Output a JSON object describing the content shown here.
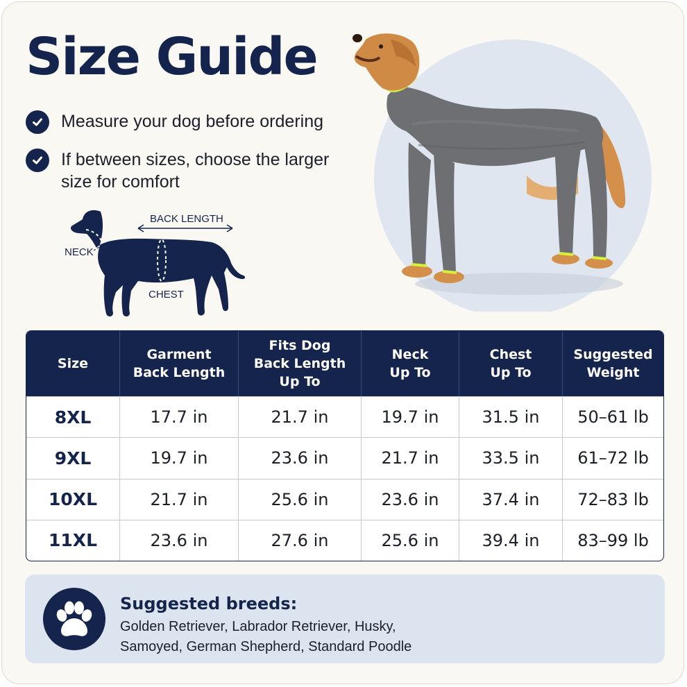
{
  "title": "Size Guide",
  "tips": [
    {
      "icon": "check-icon",
      "lines": [
        "Measure your dog before ordering"
      ]
    },
    {
      "icon": "check-icon",
      "lines": [
        "If between sizes, choose the larger",
        "size for comfort"
      ]
    }
  ],
  "diagram": {
    "back_length": "BACK LENGTH",
    "neck": "NECK",
    "chest": "CHEST"
  },
  "table": {
    "headers": [
      [
        "Size"
      ],
      [
        "Garment",
        "Back Length"
      ],
      [
        "Fits Dog",
        "Back Length",
        "Up To"
      ],
      [
        "Neck",
        "Up To"
      ],
      [
        "Chest",
        "Up To"
      ],
      [
        "Suggested",
        "Weight"
      ]
    ],
    "rows": [
      [
        "8XL",
        "17.7 in",
        "21.7 in",
        "19.7 in",
        "31.5 in",
        "50–61 lb"
      ],
      [
        "9XL",
        "19.7 in",
        "23.6 in",
        "21.7 in",
        "33.5 in",
        "61–72 lb"
      ],
      [
        "10XL",
        "21.7 in",
        "25.6 in",
        "23.6 in",
        "37.4 in",
        "72–83 lb"
      ],
      [
        "11XL",
        "23.6 in",
        "27.6 in",
        "25.6 in",
        "39.4 in",
        "83–99 lb"
      ]
    ]
  },
  "breeds": {
    "title": "Suggested breeds:",
    "lines": [
      "Golden Retriever, Labrador Retriever, Husky,",
      "Samoyed, German Shepherd, Standard Poodle"
    ]
  },
  "colors": {
    "navy": "#15244d",
    "card_bg": "#faf8f3",
    "panel": "#dbe4ef",
    "photo_circle": "#dfe6ef",
    "trim": "#d6f03a"
  }
}
